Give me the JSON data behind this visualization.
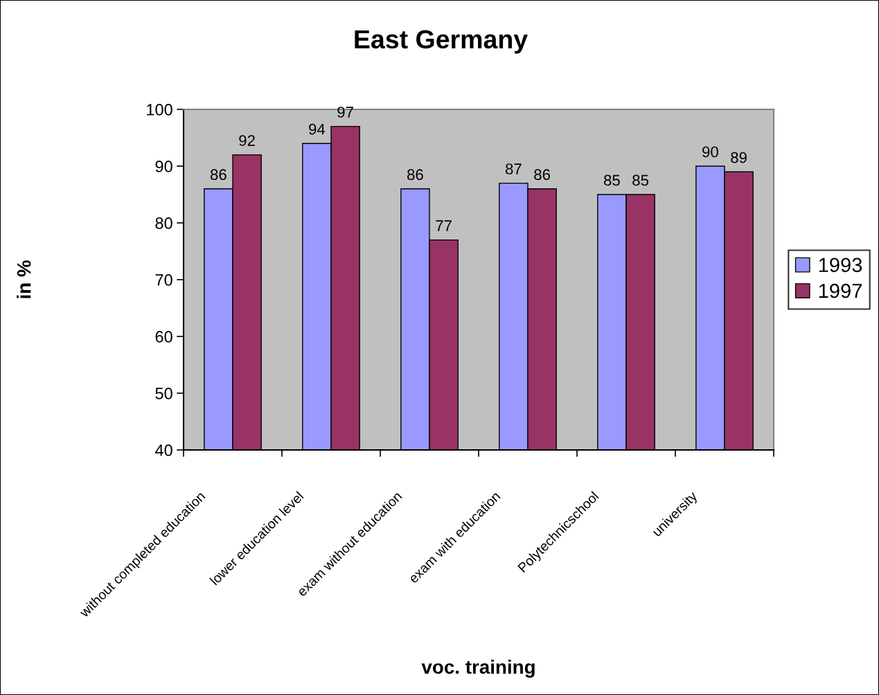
{
  "chart_data": {
    "type": "bar",
    "title": "East Germany",
    "xlabel": "voc. training",
    "ylabel": "in %",
    "categories": [
      "without completed education",
      "lower education level",
      "exam without education",
      "exam with education",
      "Polytechnicschool",
      "university"
    ],
    "series": [
      {
        "name": "1993",
        "color": "#9999ff",
        "values": [
          86,
          94,
          86,
          87,
          85,
          90
        ]
      },
      {
        "name": "1997",
        "color": "#993366",
        "values": [
          92,
          97,
          77,
          86,
          85,
          89
        ]
      }
    ],
    "ylim": [
      40,
      100
    ],
    "yticks": [
      40,
      50,
      60,
      70,
      80,
      90,
      100
    ],
    "data_labels": true,
    "legend": "right"
  }
}
